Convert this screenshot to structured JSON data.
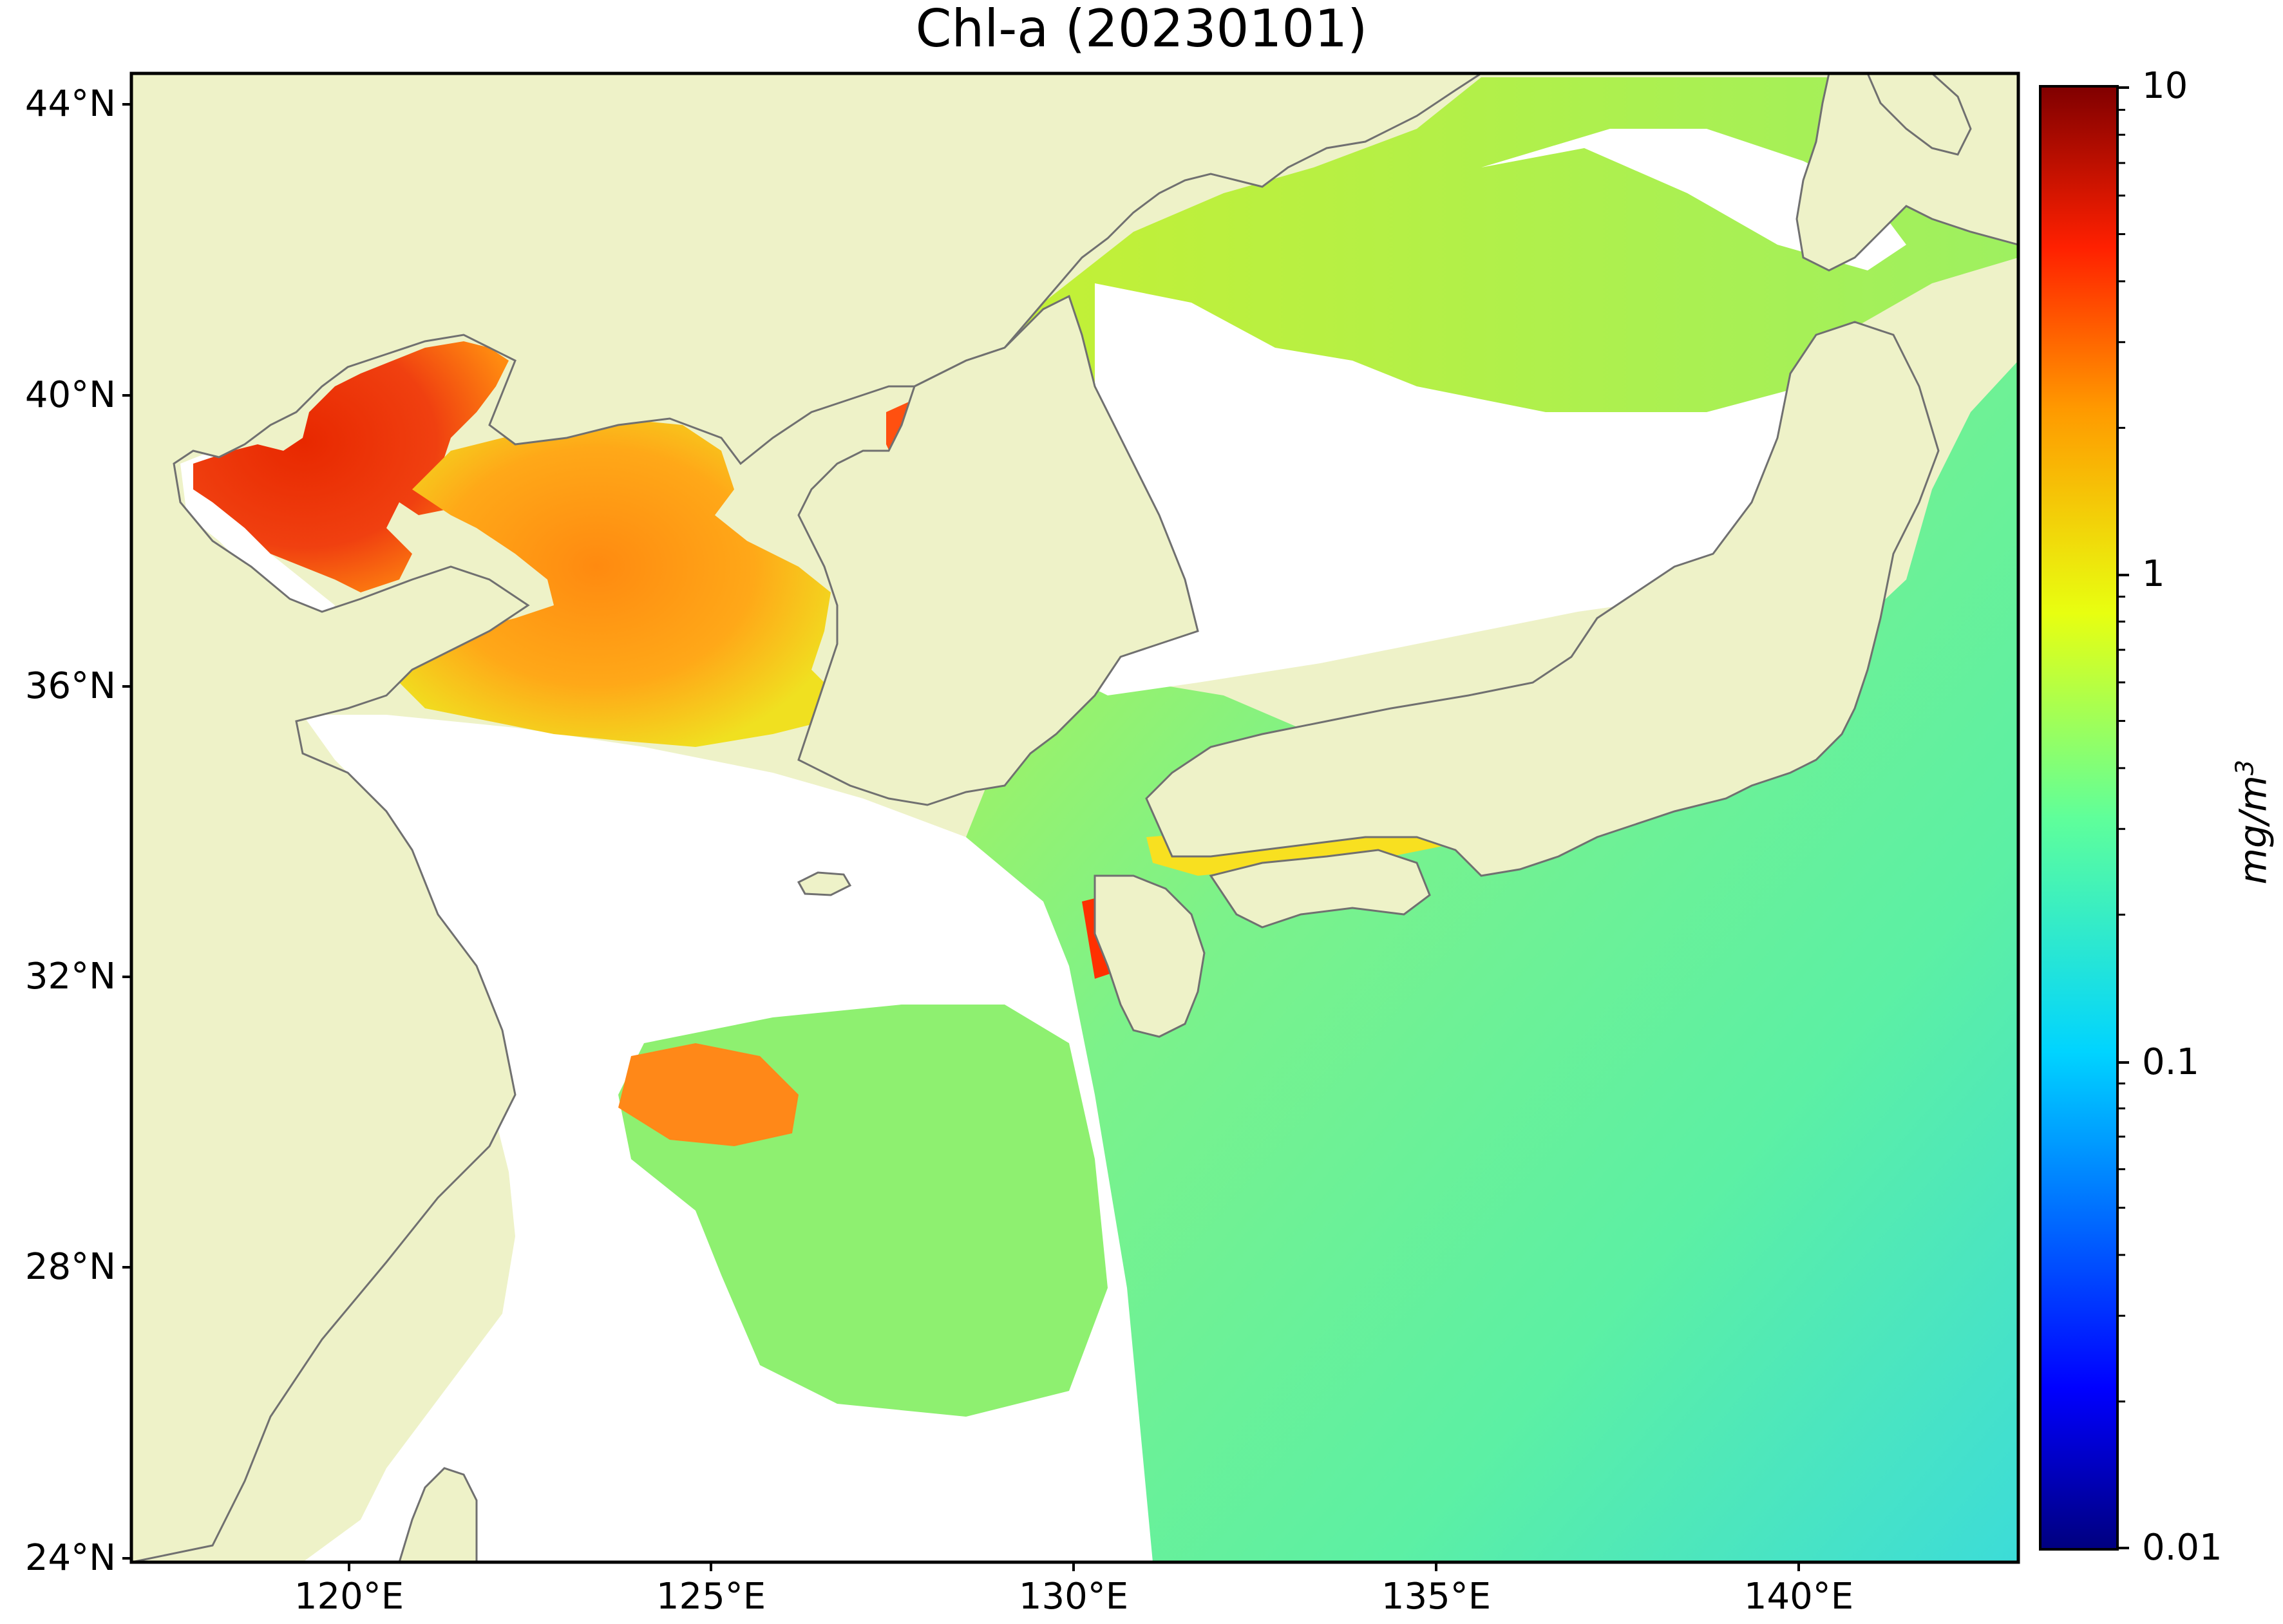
{
  "title": "Chl-a (20230101)",
  "map": {
    "region": "East Asia marginal seas",
    "lat_range": [
      24,
      44.5
    ],
    "lon_range": [
      117,
      143
    ],
    "lat_ticks": [
      "44°N",
      "40°N",
      "36°N",
      "32°N",
      "28°N",
      "24°N"
    ],
    "lon_ticks": [
      "120°E",
      "125°E",
      "130°E",
      "135°E",
      "140°E"
    ],
    "land_color": "#eef2c8",
    "coast_color": "#707070",
    "no_data_color": "#ffffff"
  },
  "colorbar": {
    "scale": "log",
    "colormap": "jet",
    "tick_labels": [
      "10",
      "1",
      "0.1",
      "0.01"
    ],
    "range": [
      0.01,
      10
    ],
    "unit": "mg/m³",
    "unit_base": "mg/m",
    "unit_exp": "3"
  }
}
